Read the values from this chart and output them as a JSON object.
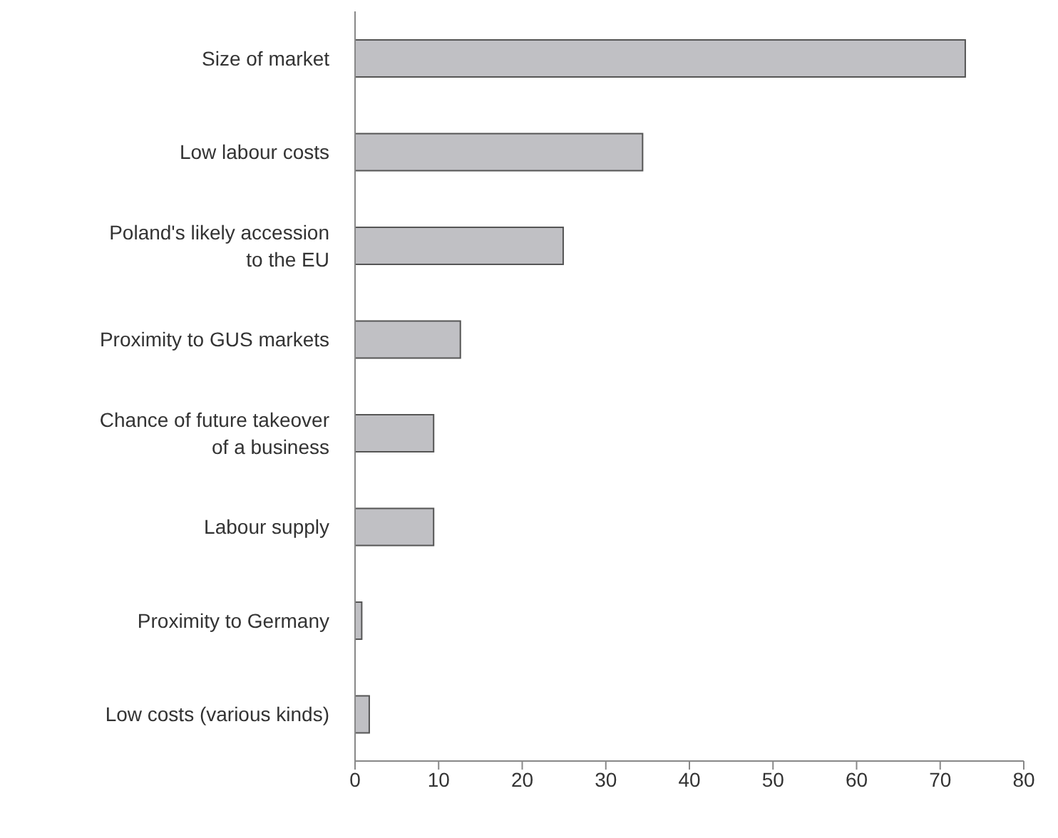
{
  "chart_data": {
    "type": "bar",
    "orientation": "horizontal",
    "categories": [
      "Size of market",
      "Low labour costs",
      "Poland's likely accession\nto the EU",
      "Proximity to GUS markets",
      "Chance of future takeover\nof a business",
      "Labour supply",
      "Proximity to Germany",
      "Low costs (various kinds)"
    ],
    "values": [
      73,
      34.4,
      24.9,
      12.6,
      9.4,
      9.4,
      0.8,
      1.7
    ],
    "color": "#c0c0c4",
    "xlim": [
      0,
      80
    ],
    "xticks": [
      0,
      10,
      20,
      30,
      40,
      50,
      60,
      70,
      80
    ],
    "grid": false
  }
}
